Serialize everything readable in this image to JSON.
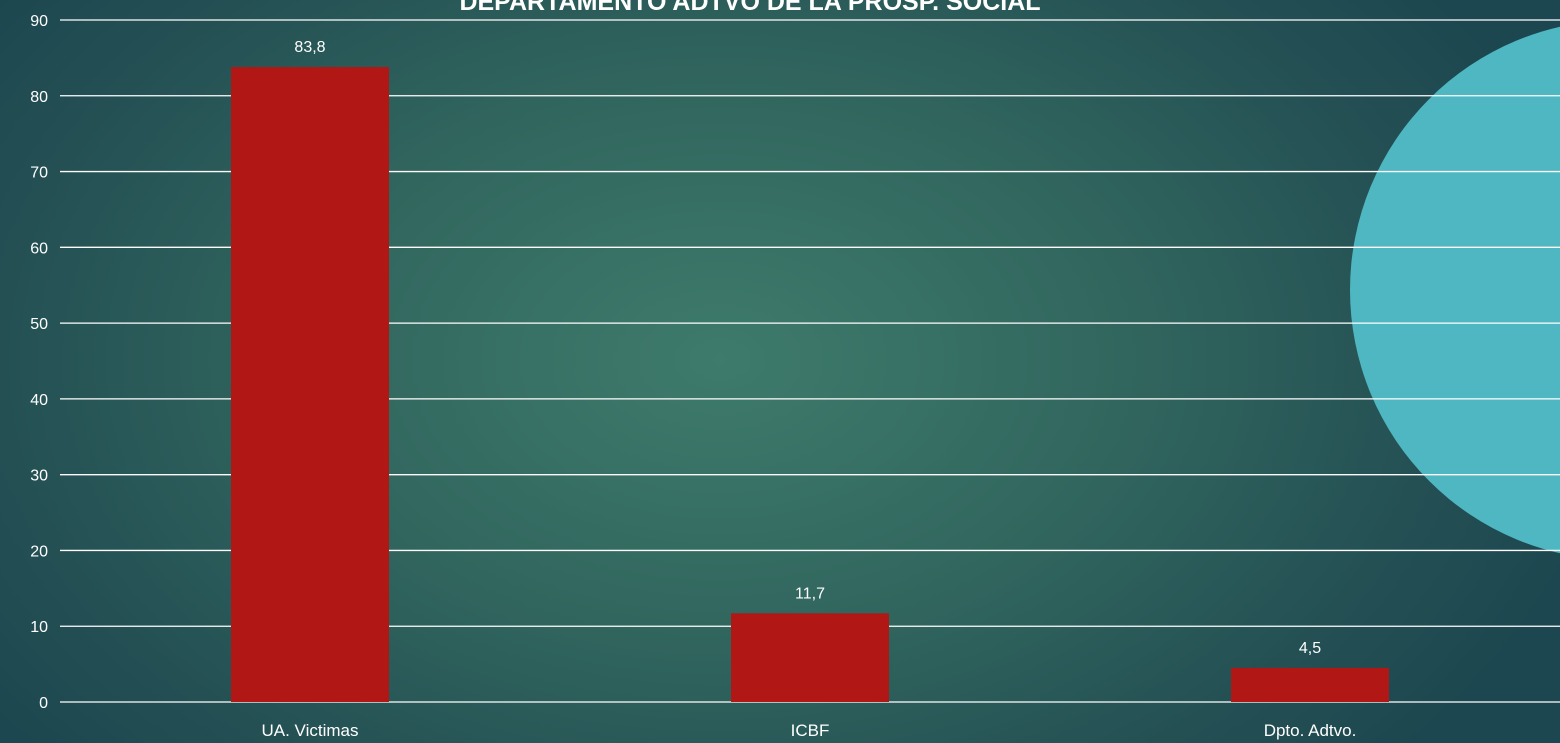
{
  "chart_data": {
    "type": "bar",
    "title": "DEPARTAMENTO ADTVO DE LA PROSP. SOCIAL",
    "categories": [
      "UA. Victimas",
      "ICBF",
      "Dpto. Adtvo."
    ],
    "values": [
      83.8,
      11.7,
      4.5
    ],
    "data_labels": [
      "83,8",
      "11,7",
      "4,5"
    ],
    "ylim": [
      0,
      90
    ],
    "y_ticks": [
      0,
      10,
      20,
      30,
      40,
      50,
      60,
      70,
      80,
      90
    ],
    "grid": true,
    "legend": "none",
    "xlabel": "",
    "ylabel": ""
  },
  "colors": {
    "bar": "#b01715",
    "gridline": "#ffffff",
    "text": "#ffffff",
    "decor_circle": "#4fb7c1"
  }
}
